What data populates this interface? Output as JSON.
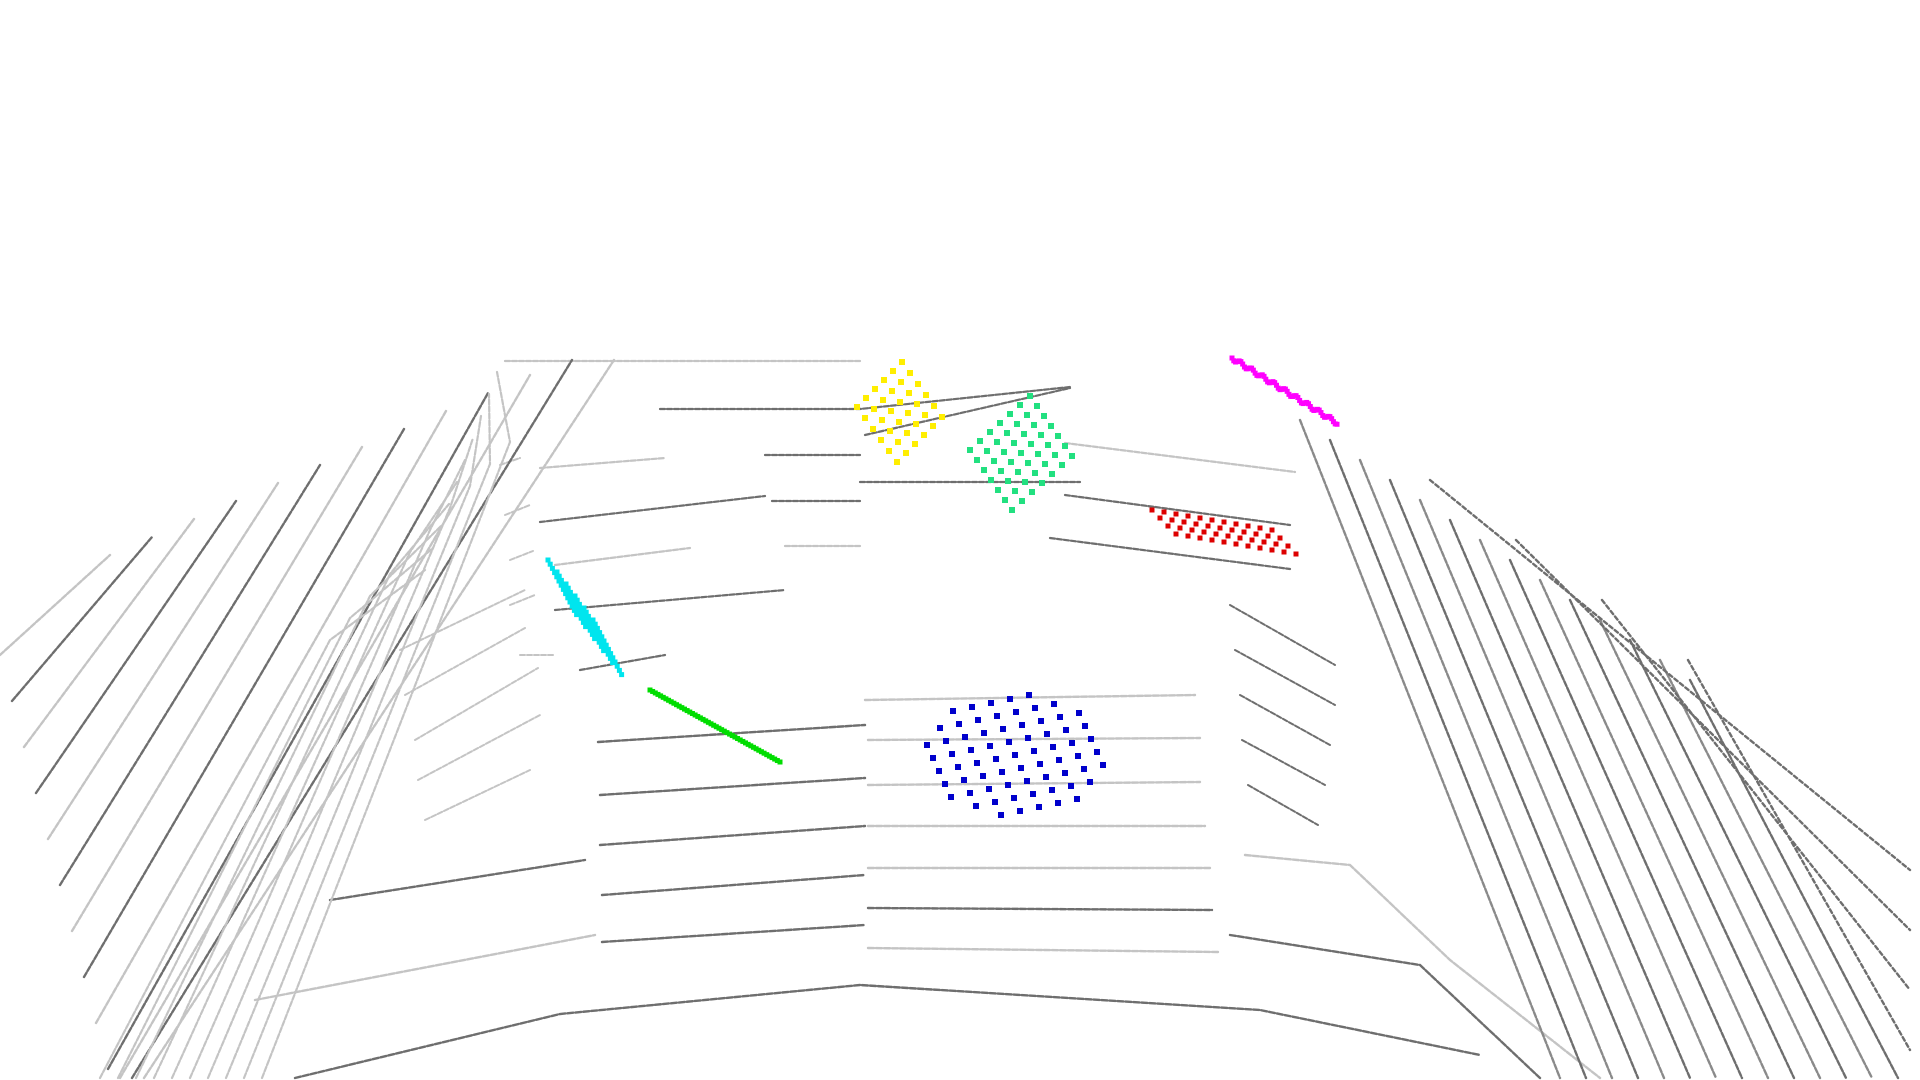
{
  "scene": {
    "background_color": "#ffffff",
    "scan_line_color": "#6e6e6e",
    "scan_line_light_color": "#c4c4c4"
  },
  "clusters": [
    {
      "name": "yellow",
      "color": "#ffee00",
      "shape": "square-grid"
    },
    {
      "name": "spring-green",
      "color": "#22e080",
      "shape": "square-grid"
    },
    {
      "name": "magenta",
      "color": "#ff00ff",
      "shape": "streak"
    },
    {
      "name": "red",
      "color": "#dd0000",
      "shape": "square-grid"
    },
    {
      "name": "cyan",
      "color": "#00e5ee",
      "shape": "stripes"
    },
    {
      "name": "green",
      "color": "#00dd00",
      "shape": "streak"
    },
    {
      "name": "blue",
      "color": "#0000cc",
      "shape": "diamond-grid"
    }
  ]
}
